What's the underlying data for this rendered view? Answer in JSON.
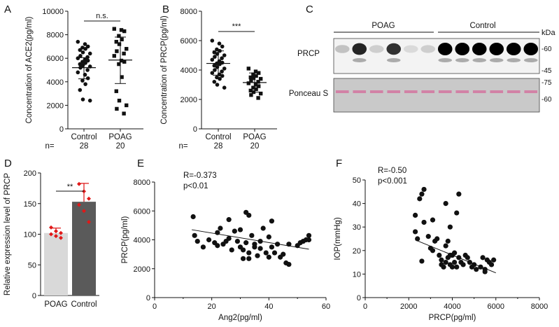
{
  "chart_data": [
    {
      "panel": "A",
      "type": "scatter",
      "ylabel": "Concentration of ACE2(pg/ml)",
      "ylim": [
        0,
        10000
      ],
      "yticks": [
        0,
        2000,
        4000,
        6000,
        8000,
        10000
      ],
      "categories": [
        "Control",
        "POAG"
      ],
      "n_label": "n=",
      "n": [
        "28",
        "20"
      ],
      "significance": "n.s.",
      "series": [
        {
          "name": "Control",
          "marker": "circle",
          "mean": 5200,
          "sd_low": 4250,
          "sd_high": 6050,
          "values": [
            7400,
            7200,
            7000,
            6900,
            6800,
            6700,
            6500,
            6400,
            6200,
            6100,
            6000,
            5900,
            5800,
            5700,
            5600,
            5500,
            5400,
            5300,
            5200,
            5000,
            4800,
            4600,
            4300,
            4100,
            3800,
            3300,
            2500,
            2400
          ]
        },
        {
          "name": "POAG",
          "marker": "square",
          "mean": 5850,
          "sd_low": 3850,
          "sd_high": 7800,
          "values": [
            8500,
            8400,
            8300,
            7900,
            7600,
            7400,
            7200,
            6800,
            6600,
            6400,
            6200,
            5800,
            5700,
            5500,
            4400,
            3200,
            2400,
            2000,
            1700,
            1300
          ]
        }
      ]
    },
    {
      "panel": "B",
      "type": "scatter",
      "ylabel": "Concentration of PRCP(pg/ml)",
      "ylim": [
        0,
        8000
      ],
      "yticks": [
        0,
        2000,
        4000,
        6000,
        8000
      ],
      "categories": [
        "Control",
        "POAG"
      ],
      "n_label": "n=",
      "n": [
        "28",
        "20"
      ],
      "significance": "***",
      "series": [
        {
          "name": "Control",
          "marker": "circle",
          "mean": 4450,
          "sd_low": 3650,
          "sd_high": 5300,
          "values": [
            6000,
            5800,
            5600,
            5400,
            5300,
            5200,
            5100,
            5000,
            4900,
            4800,
            4700,
            4600,
            4500,
            4450,
            4400,
            4300,
            4200,
            4100,
            4000,
            3900,
            3800,
            3700,
            3600,
            3500,
            3400,
            3200,
            3000,
            2800
          ]
        },
        {
          "name": "POAG",
          "marker": "square",
          "mean": 3150,
          "sd_low": 2500,
          "sd_high": 3800,
          "values": [
            4100,
            3900,
            3800,
            3700,
            3600,
            3500,
            3450,
            3400,
            3300,
            3200,
            3100,
            3000,
            2900,
            2800,
            2700,
            2600,
            2500,
            2400,
            2300,
            2100
          ]
        }
      ]
    },
    {
      "panel": "D",
      "type": "bar",
      "ylabel": "Relative expression level of PRCP",
      "ylim": [
        0,
        200
      ],
      "yticks": [
        0,
        50,
        100,
        150,
        200
      ],
      "categories": [
        "POAG",
        "Control"
      ],
      "values": [
        102,
        153
      ],
      "errors": [
        8,
        30
      ],
      "bar_colors": [
        "#d9d9d9",
        "#5a5a5a"
      ],
      "point_color": "#e11818",
      "points": [
        [
          111,
          105,
          102,
          100,
          97,
          94
        ],
        [
          182,
          170,
          158,
          148,
          138,
          120
        ]
      ],
      "significance": "**"
    },
    {
      "panel": "E",
      "type": "scatter",
      "xlabel": "Ang2(pg/ml)",
      "ylabel": "PRCP(pg/ml)",
      "xlim": [
        0,
        60
      ],
      "ylim": [
        0,
        8000
      ],
      "xticks": [
        0,
        20,
        40,
        60
      ],
      "yticks": [
        0,
        2000,
        4000,
        6000,
        8000
      ],
      "r_text": "R=-0.373",
      "p_text": "p<0.01",
      "fit": {
        "x0": 13,
        "y0": 4700,
        "x1": 54,
        "y1": 3350
      },
      "points": [
        [
          13.5,
          5600
        ],
        [
          14,
          4300
        ],
        [
          15,
          3900
        ],
        [
          17,
          3500
        ],
        [
          19,
          4000
        ],
        [
          21,
          3800
        ],
        [
          22,
          3600
        ],
        [
          22,
          4500
        ],
        [
          23,
          4800
        ],
        [
          24,
          3700
        ],
        [
          25,
          3900
        ],
        [
          26,
          4100
        ],
        [
          26,
          5400
        ],
        [
          27,
          3300
        ],
        [
          28,
          4600
        ],
        [
          29,
          3900
        ],
        [
          30,
          3500
        ],
        [
          30,
          4700
        ],
        [
          31,
          2700
        ],
        [
          31,
          3300
        ],
        [
          32,
          3800
        ],
        [
          32,
          5900
        ],
        [
          33,
          2700
        ],
        [
          33,
          5700
        ],
        [
          33,
          3100
        ],
        [
          34,
          4300
        ],
        [
          35,
          3700
        ],
        [
          35,
          3500
        ],
        [
          36,
          2900
        ],
        [
          37,
          3400
        ],
        [
          37,
          3900
        ],
        [
          38,
          4800
        ],
        [
          39,
          3100
        ],
        [
          40,
          2800
        ],
        [
          40,
          4200
        ],
        [
          41,
          3500
        ],
        [
          41,
          5300
        ],
        [
          42,
          3100
        ],
        [
          43,
          3700
        ],
        [
          44,
          2800
        ],
        [
          45,
          3000
        ],
        [
          46,
          2400
        ],
        [
          47,
          2300
        ],
        [
          47,
          3700
        ],
        [
          50,
          3600
        ],
        [
          51,
          3800
        ],
        [
          52,
          3900
        ],
        [
          53,
          4000
        ],
        [
          54,
          4300
        ],
        [
          54,
          4000
        ]
      ]
    },
    {
      "panel": "F",
      "type": "scatter",
      "xlabel": "PRCP(pg/ml)",
      "ylabel": "IOP(mmHg)",
      "xlim": [
        0,
        8000
      ],
      "ylim": [
        0,
        50
      ],
      "xticks": [
        0,
        2000,
        4000,
        6000,
        8000
      ],
      "yticks": [
        0,
        10,
        20,
        30,
        40,
        50
      ],
      "r_text": "R=-0.50",
      "p_text": "p<0.001",
      "fit": {
        "x0": 2300,
        "y0": 24.5,
        "x1": 6000,
        "y1": 10.5
      },
      "points": [
        [
          2300,
          35
        ],
        [
          2300,
          28
        ],
        [
          2400,
          25
        ],
        [
          2500,
          42
        ],
        [
          2600,
          44
        ],
        [
          2700,
          46
        ],
        [
          2700,
          32
        ],
        [
          2600,
          15.5
        ],
        [
          2900,
          26
        ],
        [
          3000,
          21
        ],
        [
          3100,
          20
        ],
        [
          3100,
          33
        ],
        [
          3200,
          24
        ],
        [
          3300,
          25
        ],
        [
          3400,
          18
        ],
        [
          3500,
          16
        ],
        [
          3500,
          14
        ],
        [
          3600,
          13
        ],
        [
          3700,
          40
        ],
        [
          3700,
          15
        ],
        [
          3700,
          22
        ],
        [
          3800,
          24
        ],
        [
          3800,
          17
        ],
        [
          3900,
          30
        ],
        [
          3900,
          14
        ],
        [
          3900,
          18
        ],
        [
          4000,
          18
        ],
        [
          4000,
          13
        ],
        [
          4100,
          19
        ],
        [
          4100,
          15
        ],
        [
          4200,
          13
        ],
        [
          4200,
          36
        ],
        [
          4300,
          44
        ],
        [
          4300,
          17
        ],
        [
          4400,
          15
        ],
        [
          4500,
          14
        ],
        [
          4600,
          18
        ],
        [
          4700,
          17
        ],
        [
          4800,
          15
        ],
        [
          4900,
          13
        ],
        [
          5000,
          14
        ],
        [
          5100,
          12
        ],
        [
          5300,
          13
        ],
        [
          5400,
          17
        ],
        [
          5500,
          12
        ],
        [
          5500,
          11
        ],
        [
          5600,
          16
        ],
        [
          5700,
          15
        ],
        [
          5800,
          14
        ],
        [
          5900,
          16
        ]
      ]
    }
  ],
  "panel_labels": {
    "a": "A",
    "b": "B",
    "c": "C",
    "d": "D",
    "e": "E",
    "f": "F"
  },
  "blot": {
    "groups": [
      "POAG",
      "Control"
    ],
    "unit": "kDa",
    "rows": [
      "PRCP",
      "Ponceau S"
    ],
    "markers": [
      "-60",
      "-45",
      "-75",
      "-60"
    ],
    "band_intensities": [
      0.2,
      0.85,
      0.15,
      0.8,
      0.1,
      0.15,
      1,
      1,
      1,
      1,
      1,
      1
    ]
  }
}
